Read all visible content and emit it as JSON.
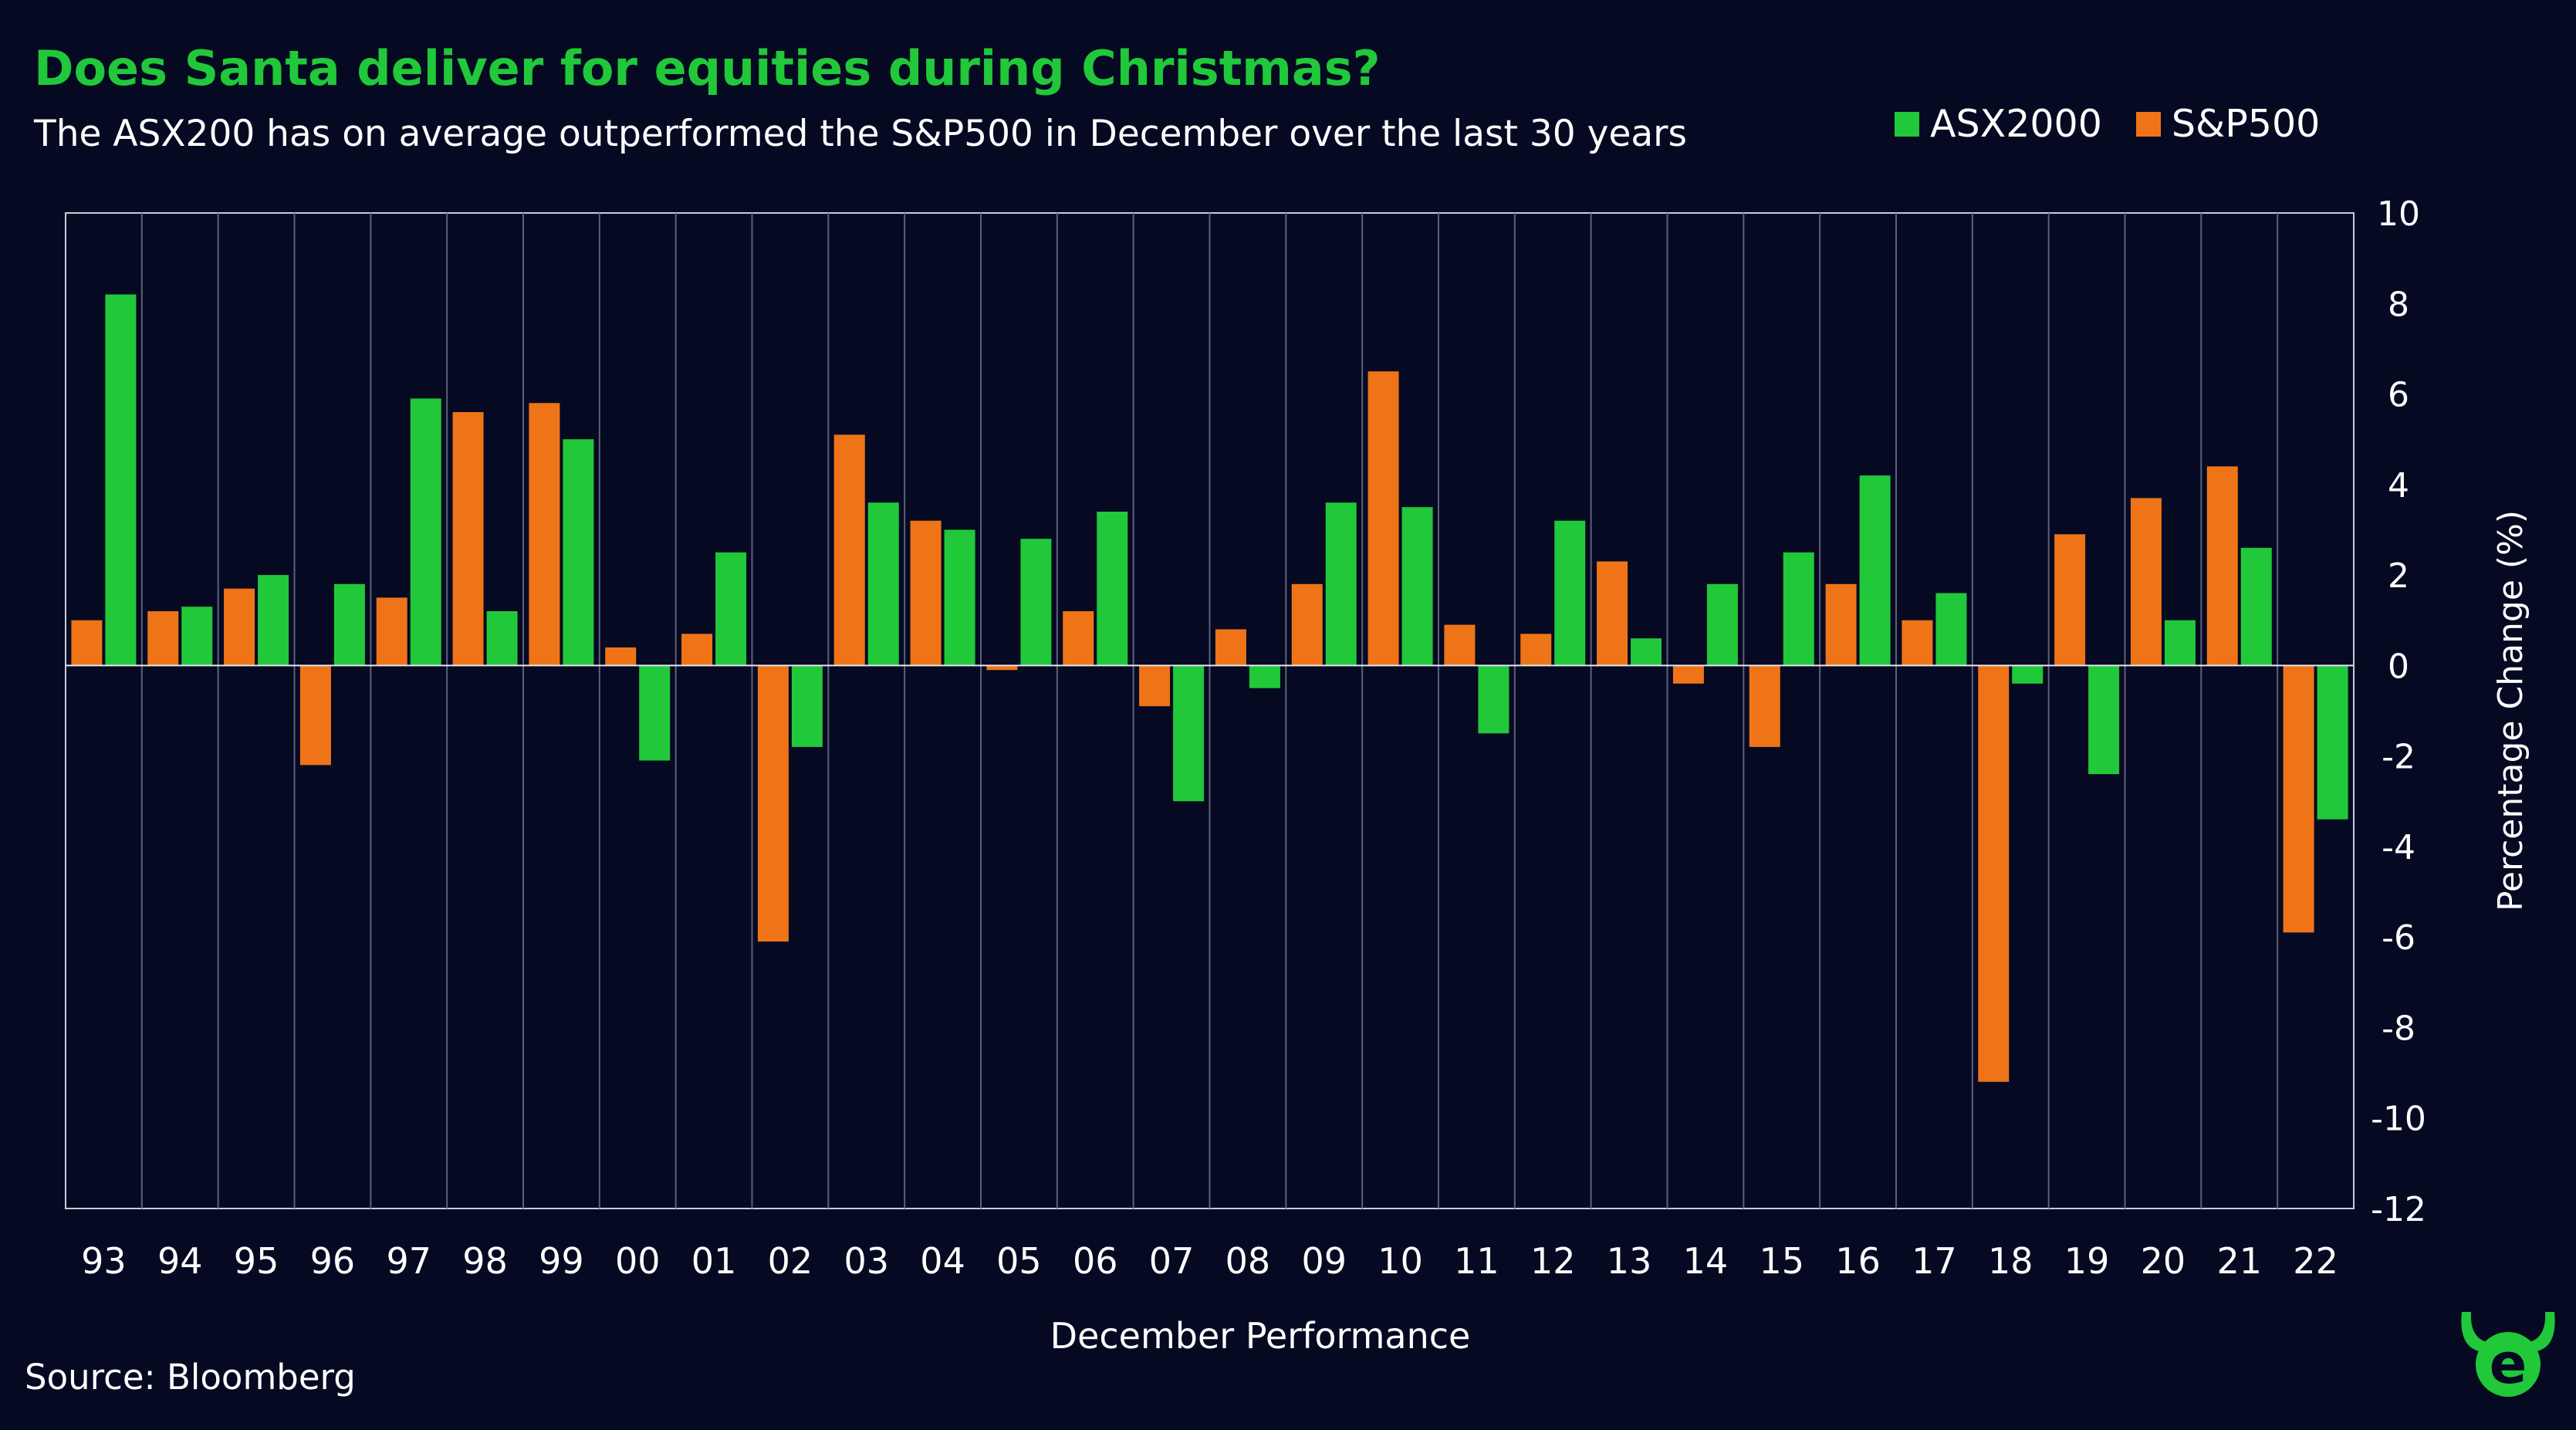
{
  "title": "Does Santa deliver for equities during Christmas?",
  "subtitle": "The ASX200 has on average outperformed the S&P500 in December over the last 30 years",
  "source": "Source: Bloomberg",
  "legend": {
    "asx_label": "ASX2000",
    "sp_label": "S&P500"
  },
  "colors": {
    "background": "#050a22",
    "asx": "#21c83a",
    "sp": "#ef7418",
    "title": "#21c83a",
    "gridline": "#5c6078",
    "axis": "#c8cbd8"
  },
  "logo_icon": "bull-e-logo-icon",
  "chart_data": {
    "type": "bar",
    "title": "Does Santa deliver for equities during Christmas?",
    "xlabel": "December Performance",
    "ylabel": "Percentage Change (%)",
    "ylim": [
      -12,
      10
    ],
    "yticks": [
      10,
      8,
      6,
      4,
      2,
      0,
      -2,
      -4,
      -6,
      -8,
      -10,
      -12
    ],
    "grid": "vertical separators between years",
    "legend_position": "top-right",
    "categories": [
      "93",
      "94",
      "95",
      "96",
      "97",
      "98",
      "99",
      "00",
      "01",
      "02",
      "03",
      "04",
      "05",
      "06",
      "07",
      "08",
      "09",
      "10",
      "11",
      "12",
      "13",
      "14",
      "15",
      "16",
      "17",
      "18",
      "19",
      "20",
      "21",
      "22"
    ],
    "series": [
      {
        "name": "S&P500",
        "color": "#ef7418",
        "values": [
          1.0,
          1.2,
          1.7,
          -2.2,
          1.5,
          5.6,
          5.8,
          0.4,
          0.7,
          -6.1,
          5.1,
          3.2,
          -0.1,
          1.2,
          -0.9,
          0.8,
          1.8,
          6.5,
          0.9,
          0.7,
          2.3,
          -0.4,
          -1.8,
          1.8,
          1.0,
          -9.2,
          2.9,
          3.7,
          4.4,
          -5.9
        ]
      },
      {
        "name": "ASX2000",
        "color": "#21c83a",
        "values": [
          8.2,
          1.3,
          2.0,
          1.8,
          5.9,
          1.2,
          5.0,
          -2.1,
          2.5,
          -1.8,
          3.6,
          3.0,
          2.8,
          3.4,
          -3.0,
          -0.5,
          3.6,
          3.5,
          -1.5,
          3.2,
          0.6,
          1.8,
          2.5,
          4.2,
          1.6,
          -0.4,
          -2.4,
          1.0,
          2.6,
          -3.4
        ]
      }
    ]
  }
}
